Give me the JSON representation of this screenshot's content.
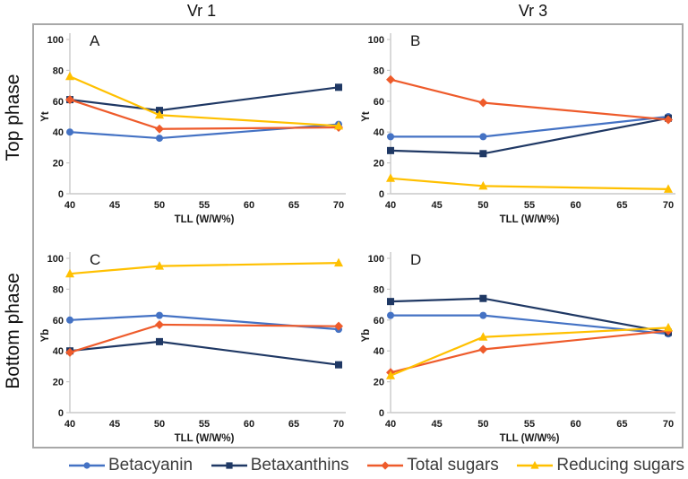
{
  "figure": {
    "column_titles": [
      "Vr 1",
      "Vr 3"
    ],
    "row_labels": [
      "Top phase",
      "Bottom phase"
    ]
  },
  "axes": {
    "x_label": "TLL (W/W%)",
    "x_ticks": [
      40,
      45,
      50,
      55,
      60,
      65,
      70
    ],
    "y_ticks": [
      0,
      20,
      40,
      60,
      80,
      100
    ],
    "xlim": [
      40,
      70
    ],
    "ylim": [
      0,
      100
    ],
    "grid": false
  },
  "series_styles": [
    {
      "name": "Betacyanin",
      "color": "#4472C4",
      "marker": "circle"
    },
    {
      "name": "Betaxanthins",
      "color": "#1F3864",
      "marker": "square"
    },
    {
      "name": "Total sugars",
      "color": "#EE5B2B",
      "marker": "diamond"
    },
    {
      "name": "Reducing sugars",
      "color": "#FFC000",
      "marker": "triangle"
    }
  ],
  "legend": {
    "position": "bottom",
    "items": [
      {
        "label": "Betacyanin"
      },
      {
        "label": "Betaxanthins"
      },
      {
        "label": "Total sugars"
      },
      {
        "label": "Reducing sugars"
      }
    ]
  },
  "chart_data": [
    {
      "type": "line",
      "panel": "A",
      "column": "Vr 1",
      "row": "Top phase",
      "xlabel": "TLL (W/W%)",
      "ylabel": "Yt",
      "xlim": [
        40,
        70
      ],
      "ylim": [
        0,
        100
      ],
      "x": [
        40,
        50,
        70
      ],
      "series": [
        {
          "name": "Betacyanin",
          "values": [
            40,
            36,
            45
          ]
        },
        {
          "name": "Betaxanthins",
          "values": [
            61,
            54,
            69
          ]
        },
        {
          "name": "Total sugars",
          "values": [
            61,
            42,
            43
          ]
        },
        {
          "name": "Reducing sugars",
          "values": [
            76,
            51,
            44
          ]
        }
      ]
    },
    {
      "type": "line",
      "panel": "B",
      "column": "Vr 3",
      "row": "Top phase",
      "xlabel": "TLL (W/W%)",
      "ylabel": "Yt",
      "xlim": [
        40,
        70
      ],
      "ylim": [
        0,
        100
      ],
      "x": [
        40,
        50,
        70
      ],
      "series": [
        {
          "name": "Betacyanin",
          "values": [
            37,
            37,
            50
          ]
        },
        {
          "name": "Betaxanthins",
          "values": [
            28,
            26,
            49
          ]
        },
        {
          "name": "Total sugars",
          "values": [
            74,
            59,
            48
          ]
        },
        {
          "name": "Reducing sugars",
          "values": [
            10,
            5,
            3
          ]
        }
      ]
    },
    {
      "type": "line",
      "panel": "C",
      "column": "Vr 1",
      "row": "Bottom phase",
      "xlabel": "TLL (W/W%)",
      "ylabel": "Yb",
      "xlim": [
        40,
        70
      ],
      "ylim": [
        0,
        100
      ],
      "x": [
        40,
        50,
        70
      ],
      "series": [
        {
          "name": "Betacyanin",
          "values": [
            60,
            63,
            54
          ]
        },
        {
          "name": "Betaxanthins",
          "values": [
            40,
            46,
            31
          ]
        },
        {
          "name": "Total sugars",
          "values": [
            39,
            57,
            56
          ]
        },
        {
          "name": "Reducing sugars",
          "values": [
            90,
            95,
            97
          ]
        }
      ]
    },
    {
      "type": "line",
      "panel": "D",
      "column": "Vr 3",
      "row": "Bottom phase",
      "xlabel": "TLL (W/W%)",
      "ylabel": "Yb",
      "xlim": [
        40,
        70
      ],
      "ylim": [
        0,
        100
      ],
      "x": [
        40,
        50,
        70
      ],
      "series": [
        {
          "name": "Betacyanin",
          "values": [
            63,
            63,
            51
          ]
        },
        {
          "name": "Betaxanthins",
          "values": [
            72,
            74,
            52
          ]
        },
        {
          "name": "Total sugars",
          "values": [
            26,
            41,
            53
          ]
        },
        {
          "name": "Reducing sugars",
          "values": [
            24,
            49,
            55
          ]
        }
      ]
    }
  ],
  "colors": {
    "axis_line": "#C9C9C9",
    "figure_border": "#A8A8A8",
    "tick_text": "#1a1a1a",
    "legend_text": "#3d3d3d"
  }
}
